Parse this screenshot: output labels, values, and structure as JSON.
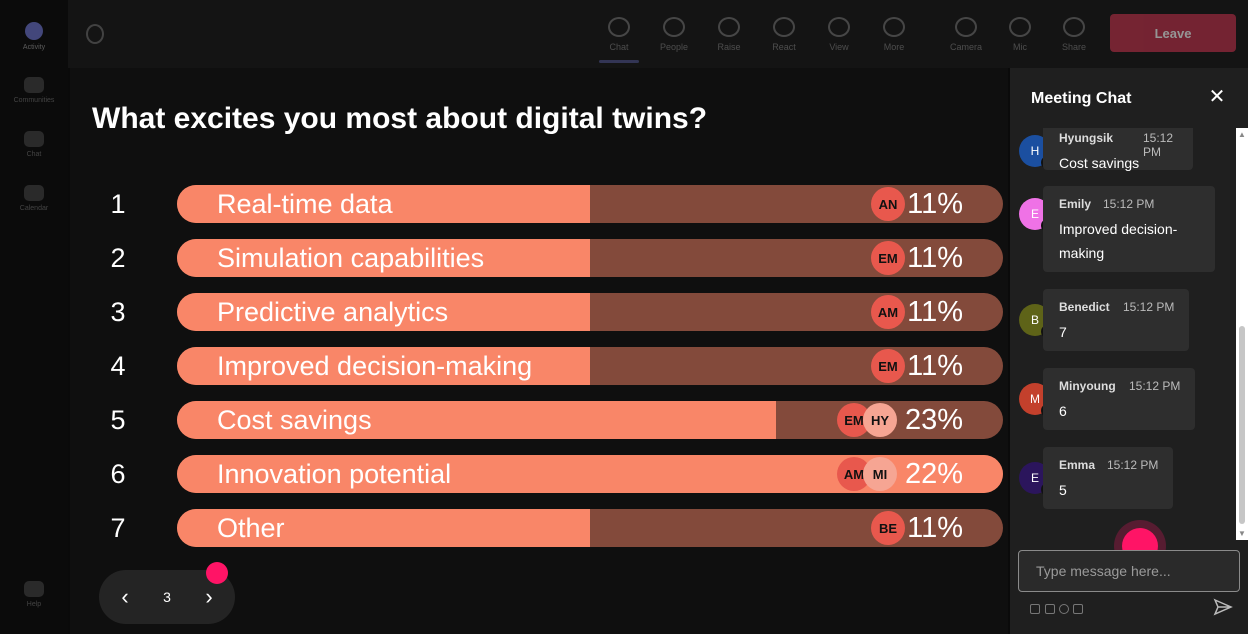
{
  "app_bar": {
    "items": [
      {
        "label": "Activity"
      },
      {
        "label": "Communities"
      },
      {
        "label": "Chat"
      },
      {
        "label": "Calendar"
      },
      {
        "label": "Help"
      }
    ]
  },
  "toolbar": {
    "items": [
      {
        "label": "Chat"
      },
      {
        "label": "People"
      },
      {
        "label": "Raise"
      },
      {
        "label": "React"
      },
      {
        "label": "View"
      },
      {
        "label": "More"
      },
      {
        "label": "Camera"
      },
      {
        "label": "Mic"
      },
      {
        "label": "Share"
      }
    ],
    "leave_label": "Leave"
  },
  "poll": {
    "question": "What excites you most about digital twins?",
    "options": [
      {
        "num": "1",
        "label": "Real-time data",
        "percent": 11,
        "percent_label": "11%",
        "voters": [
          "AN"
        ]
      },
      {
        "num": "2",
        "label": "Simulation capabilities",
        "percent": 11,
        "percent_label": "11%",
        "voters": [
          "EM"
        ]
      },
      {
        "num": "3",
        "label": "Predictive analytics",
        "percent": 11,
        "percent_label": "11%",
        "voters": [
          "AM"
        ]
      },
      {
        "num": "4",
        "label": "Improved decision-making",
        "percent": 11,
        "percent_label": "11%",
        "voters": [
          "EM"
        ]
      },
      {
        "num": "5",
        "label": "Cost savings",
        "percent": 23,
        "percent_label": "23%",
        "voters": [
          "EM",
          "HY"
        ]
      },
      {
        "num": "6",
        "label": "Innovation potential",
        "percent": 22,
        "percent_label": "22%",
        "voters": [
          "AM",
          "MI"
        ]
      },
      {
        "num": "7",
        "label": "Other",
        "percent": 11,
        "percent_label": "11%",
        "voters": [
          "BE"
        ]
      }
    ]
  },
  "pager": {
    "page": "3"
  },
  "chat": {
    "title": "Meeting Chat",
    "messages": [
      {
        "initial": "H",
        "name": "Hyungsik",
        "time": "15:12 PM",
        "text": "Cost savings",
        "avatar_color": "#1b4fa0"
      },
      {
        "initial": "E",
        "name": "Emily",
        "time": "15:12 PM",
        "text": "Improved decision-making",
        "avatar_color": "#ef72e6"
      },
      {
        "initial": "B",
        "name": "Benedict",
        "time": "15:12 PM",
        "text": "7",
        "avatar_color": "#5e6318"
      },
      {
        "initial": "M",
        "name": "Minyoung",
        "time": "15:12 PM",
        "text": "6",
        "avatar_color": "#c3402c"
      },
      {
        "initial": "E",
        "name": "Emma",
        "time": "15:12 PM",
        "text": "5",
        "avatar_color": "#2b155c"
      }
    ],
    "compose_placeholder": "Type message here..."
  }
}
